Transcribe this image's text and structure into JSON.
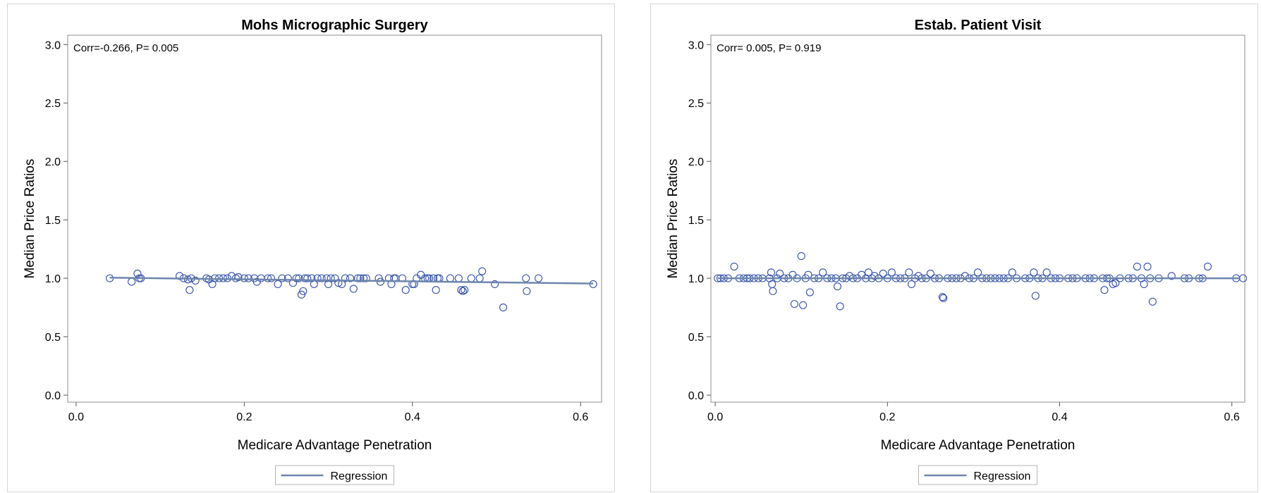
{
  "colors": {
    "marker": "#3350a8",
    "regression": "#6e86ad",
    "frame": "#a0a0a0"
  },
  "chart_data": [
    {
      "type": "scatter",
      "title": "Mohs Micrographic Surgery",
      "xlabel": "Medicare Advantage Penetration",
      "ylabel": "Median Price Ratios",
      "annotation": "Corr=-0.266, P= 0.005",
      "xlim": [
        -0.01,
        0.625
      ],
      "ylim": [
        -0.06,
        3.08
      ],
      "xticks": [
        "0.0",
        "0.2",
        "0.4",
        "0.6"
      ],
      "yticks": [
        "0.0",
        "0.5",
        "1.0",
        "1.5",
        "2.0",
        "2.5",
        "3.0"
      ],
      "grid": false,
      "legend": {
        "position": "bottom-center",
        "entries": [
          "Regression"
        ]
      },
      "regression": {
        "x": [
          0.04,
          0.615
        ],
        "y": [
          1.005,
          0.955
        ]
      },
      "points": [
        [
          0.04,
          1.0
        ],
        [
          0.066,
          0.97
        ],
        [
          0.073,
          1.04
        ],
        [
          0.075,
          1.0
        ],
        [
          0.077,
          1.0
        ],
        [
          0.123,
          1.02
        ],
        [
          0.128,
          1.0
        ],
        [
          0.133,
          0.99
        ],
        [
          0.135,
          0.9
        ],
        [
          0.137,
          1.0
        ],
        [
          0.142,
          0.98
        ],
        [
          0.155,
          1.0
        ],
        [
          0.158,
          0.99
        ],
        [
          0.162,
          0.95
        ],
        [
          0.165,
          1.0
        ],
        [
          0.17,
          1.0
        ],
        [
          0.175,
          1.0
        ],
        [
          0.18,
          1.0
        ],
        [
          0.185,
          1.02
        ],
        [
          0.19,
          1.0
        ],
        [
          0.193,
          1.01
        ],
        [
          0.2,
          1.0
        ],
        [
          0.205,
          1.0
        ],
        [
          0.212,
          1.0
        ],
        [
          0.215,
          0.97
        ],
        [
          0.22,
          1.0
        ],
        [
          0.228,
          1.0
        ],
        [
          0.232,
          1.0
        ],
        [
          0.24,
          0.95
        ],
        [
          0.245,
          1.0
        ],
        [
          0.252,
          1.0
        ],
        [
          0.258,
          0.96
        ],
        [
          0.262,
          1.0
        ],
        [
          0.265,
          1.0
        ],
        [
          0.268,
          0.86
        ],
        [
          0.27,
          0.89
        ],
        [
          0.272,
          1.0
        ],
        [
          0.275,
          1.0
        ],
        [
          0.28,
          1.0
        ],
        [
          0.283,
          0.95
        ],
        [
          0.287,
          1.0
        ],
        [
          0.292,
          1.0
        ],
        [
          0.298,
          1.0
        ],
        [
          0.3,
          0.95
        ],
        [
          0.303,
          1.0
        ],
        [
          0.308,
          1.0
        ],
        [
          0.312,
          0.96
        ],
        [
          0.316,
          0.95
        ],
        [
          0.32,
          1.0
        ],
        [
          0.326,
          1.0
        ],
        [
          0.33,
          0.91
        ],
        [
          0.335,
          1.0
        ],
        [
          0.338,
          1.0
        ],
        [
          0.342,
          1.0
        ],
        [
          0.345,
          1.0
        ],
        [
          0.36,
          1.0
        ],
        [
          0.362,
          0.97
        ],
        [
          0.372,
          1.0
        ],
        [
          0.375,
          0.95
        ],
        [
          0.378,
          1.0
        ],
        [
          0.38,
          1.0
        ],
        [
          0.388,
          1.0
        ],
        [
          0.392,
          0.9
        ],
        [
          0.4,
          0.95
        ],
        [
          0.402,
          0.95
        ],
        [
          0.405,
          1.0
        ],
        [
          0.41,
          1.03
        ],
        [
          0.415,
          1.0
        ],
        [
          0.418,
          1.0
        ],
        [
          0.42,
          1.0
        ],
        [
          0.425,
          1.0
        ],
        [
          0.428,
          0.9
        ],
        [
          0.43,
          1.0
        ],
        [
          0.432,
          1.0
        ],
        [
          0.445,
          1.0
        ],
        [
          0.455,
          1.0
        ],
        [
          0.458,
          0.9
        ],
        [
          0.46,
          0.89
        ],
        [
          0.462,
          0.9
        ],
        [
          0.47,
          1.0
        ],
        [
          0.48,
          1.0
        ],
        [
          0.483,
          1.06
        ],
        [
          0.498,
          0.95
        ],
        [
          0.508,
          0.75
        ],
        [
          0.535,
          1.0
        ],
        [
          0.536,
          0.89
        ],
        [
          0.55,
          1.0
        ],
        [
          0.615,
          0.95
        ]
      ]
    },
    {
      "type": "scatter",
      "title": "Estab. Patient Visit",
      "xlabel": "Medicare Advantage Penetration",
      "ylabel": "Median Price Ratios",
      "annotation": "Corr= 0.005, P= 0.919",
      "xlim": [
        -0.005,
        0.615
      ],
      "ylim": [
        -0.06,
        3.08
      ],
      "xticks": [
        "0.0",
        "0.2",
        "0.4",
        "0.6"
      ],
      "yticks": [
        "0.0",
        "0.5",
        "1.0",
        "1.5",
        "2.0",
        "2.5",
        "3.0"
      ],
      "grid": false,
      "legend": {
        "position": "bottom-center",
        "entries": [
          "Regression"
        ]
      },
      "regression": {
        "x": [
          0.003,
          0.61
        ],
        "y": [
          1.0,
          1.0
        ]
      },
      "points": [
        [
          0.003,
          1.0
        ],
        [
          0.006,
          1.0
        ],
        [
          0.01,
          1.0
        ],
        [
          0.015,
          1.0
        ],
        [
          0.022,
          1.1
        ],
        [
          0.028,
          1.0
        ],
        [
          0.033,
          1.0
        ],
        [
          0.037,
          1.0
        ],
        [
          0.04,
          1.0
        ],
        [
          0.045,
          1.0
        ],
        [
          0.05,
          1.0
        ],
        [
          0.055,
          1.0
        ],
        [
          0.063,
          1.0
        ],
        [
          0.065,
          1.05
        ],
        [
          0.066,
          0.95
        ],
        [
          0.067,
          0.89
        ],
        [
          0.072,
          1.0
        ],
        [
          0.075,
          1.04
        ],
        [
          0.08,
          1.0
        ],
        [
          0.085,
          1.0
        ],
        [
          0.09,
          1.03
        ],
        [
          0.092,
          0.78
        ],
        [
          0.095,
          1.0
        ],
        [
          0.1,
          1.19
        ],
        [
          0.102,
          0.77
        ],
        [
          0.105,
          1.0
        ],
        [
          0.108,
          1.03
        ],
        [
          0.11,
          0.88
        ],
        [
          0.115,
          1.0
        ],
        [
          0.12,
          1.0
        ],
        [
          0.125,
          1.05
        ],
        [
          0.13,
          1.0
        ],
        [
          0.135,
          1.0
        ],
        [
          0.14,
          1.0
        ],
        [
          0.142,
          0.93
        ],
        [
          0.145,
          0.76
        ],
        [
          0.148,
          1.0
        ],
        [
          0.152,
          1.0
        ],
        [
          0.156,
          1.02
        ],
        [
          0.16,
          1.0
        ],
        [
          0.165,
          1.0
        ],
        [
          0.17,
          1.03
        ],
        [
          0.175,
          1.0
        ],
        [
          0.178,
          1.05
        ],
        [
          0.182,
          1.0
        ],
        [
          0.185,
          1.02
        ],
        [
          0.19,
          1.0
        ],
        [
          0.195,
          1.04
        ],
        [
          0.2,
          1.0
        ],
        [
          0.205,
          1.05
        ],
        [
          0.21,
          1.0
        ],
        [
          0.215,
          1.0
        ],
        [
          0.22,
          1.0
        ],
        [
          0.225,
          1.05
        ],
        [
          0.228,
          0.95
        ],
        [
          0.232,
          1.0
        ],
        [
          0.236,
          1.02
        ],
        [
          0.24,
          1.0
        ],
        [
          0.245,
          1.0
        ],
        [
          0.25,
          1.04
        ],
        [
          0.255,
          1.0
        ],
        [
          0.26,
          1.0
        ],
        [
          0.264,
          0.84
        ],
        [
          0.265,
          0.83
        ],
        [
          0.27,
          1.0
        ],
        [
          0.275,
          1.0
        ],
        [
          0.28,
          1.0
        ],
        [
          0.285,
          1.0
        ],
        [
          0.29,
          1.02
        ],
        [
          0.295,
          1.0
        ],
        [
          0.3,
          1.0
        ],
        [
          0.305,
          1.05
        ],
        [
          0.31,
          1.0
        ],
        [
          0.315,
          1.0
        ],
        [
          0.32,
          1.0
        ],
        [
          0.325,
          1.0
        ],
        [
          0.33,
          1.0
        ],
        [
          0.335,
          1.0
        ],
        [
          0.34,
          1.0
        ],
        [
          0.345,
          1.05
        ],
        [
          0.35,
          1.0
        ],
        [
          0.36,
          1.0
        ],
        [
          0.365,
          1.0
        ],
        [
          0.37,
          1.05
        ],
        [
          0.372,
          0.85
        ],
        [
          0.375,
          1.0
        ],
        [
          0.38,
          1.0
        ],
        [
          0.385,
          1.05
        ],
        [
          0.39,
          1.0
        ],
        [
          0.395,
          1.0
        ],
        [
          0.4,
          1.0
        ],
        [
          0.41,
          1.0
        ],
        [
          0.415,
          1.0
        ],
        [
          0.42,
          1.0
        ],
        [
          0.43,
          1.0
        ],
        [
          0.435,
          1.0
        ],
        [
          0.44,
          1.0
        ],
        [
          0.45,
          1.0
        ],
        [
          0.452,
          0.9
        ],
        [
          0.455,
          1.0
        ],
        [
          0.458,
          1.0
        ],
        [
          0.462,
          0.95
        ],
        [
          0.465,
          0.96
        ],
        [
          0.47,
          1.0
        ],
        [
          0.48,
          1.0
        ],
        [
          0.485,
          1.0
        ],
        [
          0.49,
          1.1
        ],
        [
          0.495,
          1.0
        ],
        [
          0.498,
          0.95
        ],
        [
          0.502,
          1.1
        ],
        [
          0.505,
          1.0
        ],
        [
          0.508,
          0.8
        ],
        [
          0.515,
          1.0
        ],
        [
          0.53,
          1.02
        ],
        [
          0.545,
          1.0
        ],
        [
          0.55,
          1.0
        ],
        [
          0.562,
          1.0
        ],
        [
          0.566,
          1.0
        ],
        [
          0.572,
          1.1
        ],
        [
          0.605,
          1.0
        ],
        [
          0.613,
          1.0
        ]
      ]
    }
  ]
}
